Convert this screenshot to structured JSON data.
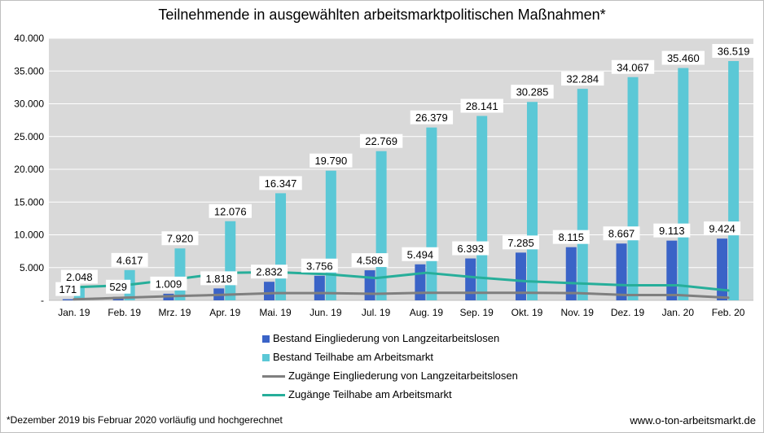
{
  "title": "Teilnehmende in ausgewählten arbeitsmarktpolitischen Maßnahmen*",
  "footnote": "*Dezember 2019 bis Februar 2020 vorläufig und hochgerechnet",
  "source": "www.o-ton-arbeitsmarkt.de",
  "chart_data": {
    "type": "bar",
    "title": "Teilnehmende in ausgewählten arbeitsmarktpolitischen Maßnahmen*",
    "categories": [
      "Jan. 19",
      "Feb. 19",
      "Mrz. 19",
      "Apr. 19",
      "Mai. 19",
      "Jun. 19",
      "Jul. 19",
      "Aug. 19",
      "Sep. 19",
      "Okt. 19",
      "Nov. 19",
      "Dez. 19",
      "Jan. 20",
      "Feb. 20"
    ],
    "ylim": [
      0,
      40000
    ],
    "yticks": [
      0,
      5000,
      10000,
      15000,
      20000,
      25000,
      30000,
      35000,
      40000
    ],
    "ytick_labels": [
      "-",
      "5.000",
      "10.000",
      "15.000",
      "20.000",
      "25.000",
      "30.000",
      "35.000",
      "40.000"
    ],
    "grid": true,
    "legend_position": "bottom",
    "series": [
      {
        "name": "Bestand Eingliederung von Langzeitarbeitslosen",
        "kind": "bar",
        "color": "#3a63c7",
        "values": [
          171,
          529,
          1009,
          1818,
          2832,
          3756,
          4586,
          5494,
          6393,
          7285,
          8115,
          8667,
          9113,
          9424
        ],
        "labels": [
          "171",
          "529",
          "1.009",
          "1.818",
          "2.832",
          "3.756",
          "4.586",
          "5.494",
          "6.393",
          "7.285",
          "8.115",
          "8.667",
          "9.113",
          "9.424"
        ]
      },
      {
        "name": "Bestand Teilhabe am Arbeitsmarkt",
        "kind": "bar",
        "color": "#5bc8d6",
        "values": [
          2048,
          4617,
          7920,
          12076,
          16347,
          19790,
          22769,
          26379,
          28141,
          30285,
          32284,
          34067,
          35460,
          36519
        ],
        "labels": [
          "2.048",
          "4.617",
          "7.920",
          "12.076",
          "16.347",
          "19.790",
          "22.769",
          "26.379",
          "28.141",
          "30.285",
          "32.284",
          "34.067",
          "35.460",
          "36.519"
        ]
      },
      {
        "name": "Zugänge Eingliederung von Langzeitarbeitslosen",
        "kind": "line",
        "color": "#7f7f7f",
        "values": [
          150,
          400,
          650,
          850,
          1100,
          1100,
          1000,
          1150,
          1150,
          1150,
          1100,
          800,
          800,
          400
        ]
      },
      {
        "name": "Zugänge Teilhabe am Arbeitsmarkt",
        "kind": "line",
        "color": "#27ae9a",
        "values": [
          2000,
          2300,
          3200,
          4200,
          4300,
          4000,
          3400,
          4200,
          3500,
          2900,
          2600,
          2300,
          2300,
          1500
        ]
      }
    ]
  }
}
